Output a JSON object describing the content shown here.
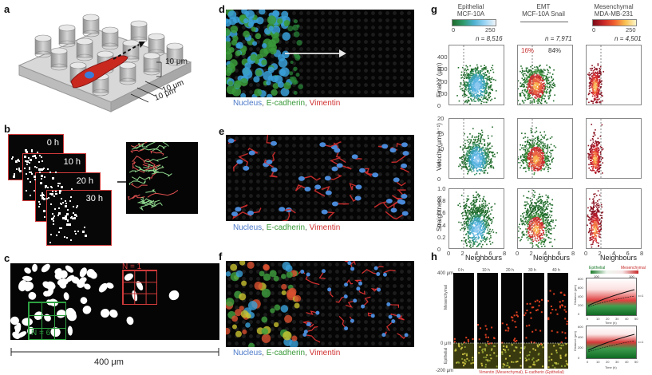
{
  "panels": {
    "a": {
      "label": "a",
      "dim1": "10 μm",
      "dim2": "10 μm",
      "dim3": "10 μm"
    },
    "b": {
      "label": "b",
      "times": [
        "0 h",
        "10 h",
        "20 h",
        "30 h"
      ]
    },
    "c": {
      "label": "c",
      "red_n": "N = 1",
      "green_n": "N = 6",
      "scale": "400 μm"
    },
    "d": {
      "label": "d"
    },
    "e": {
      "label": "e"
    },
    "f": {
      "label": "f"
    },
    "g": {
      "label": "g"
    },
    "h": {
      "label": "h"
    }
  },
  "stain_caption": {
    "nucleus": "Nucleus",
    "sep1": ", ",
    "ecad": "E-cadherin",
    "sep2": ", ",
    "vim": "Vimentin"
  },
  "g_columns": [
    {
      "header1": "Epithelial",
      "header2": "MCF-10A",
      "cbar_min": "0",
      "cbar_max": "250",
      "n": "n = 8,516",
      "colormap": [
        "#1f6b2a",
        "#2f9a6a",
        "#4fb0d0",
        "#7ec8f0",
        "#d0e8f8"
      ]
    },
    {
      "header1": "EMT",
      "header2": "MCF-10A Snail",
      "n": "n = 7,971",
      "pct_left": "16%",
      "pct_right": "84%",
      "colormap": [
        "#1f6b2a",
        "#d04040",
        "#f08060",
        "#f8c060"
      ]
    },
    {
      "header1": "Mesenchymal",
      "header2": "MDA-MB-231",
      "cbar_min": "0",
      "cbar_max": "250",
      "n": "n = 4,501",
      "colormap": [
        "#8a1020",
        "#d03030",
        "#f07040",
        "#f8c060"
      ]
    }
  ],
  "g_rows": [
    {
      "ylabel": "Final Y (μm)",
      "ticks": [
        "",
        "400",
        "300",
        "200",
        "100",
        "0"
      ]
    },
    {
      "ylabel": "Velocity (μm h⁻¹)",
      "ticks": [
        "20",
        "15",
        "10",
        "5",
        "0"
      ]
    },
    {
      "ylabel": "Straightness",
      "ticks": [
        "1.0",
        "0.8",
        "0.6",
        "0.4",
        "0.2",
        "0"
      ]
    }
  ],
  "g_xaxis": {
    "label": "Neighbours",
    "ticks": [
      "0",
      "2",
      "4",
      "6",
      "8"
    ]
  },
  "h": {
    "top_label": "400 μm",
    "zero_label": "0 μm",
    "bottom_label": "-200 μm",
    "band_top": "Mesenchymal",
    "band_bottom": "Epithelial",
    "footer": "Vimentin (Mesenchymal), E-cadherin (Epithelial)",
    "frame_times": [
      "0 h",
      "10 h",
      "20 h",
      "30 h",
      "40 h"
    ],
    "legend_left": "Epithelial",
    "legend_right": "Mesenchymal",
    "legend_min": "100",
    "legend_max": "100",
    "plot1_ylabel": "Distance (μm)",
    "plot2_ylabel": "Distance (μm)",
    "xlabel": "Time (h)",
    "plot_xticks": [
      "0",
      "10",
      "20",
      "30",
      "40",
      "50"
    ],
    "plot1_yticks": [
      "800",
      "600",
      "400",
      "200",
      "0"
    ],
    "plot2_yticks": [
      "600",
      "400",
      "200",
      "0"
    ],
    "curve_label": "ε=1"
  }
}
